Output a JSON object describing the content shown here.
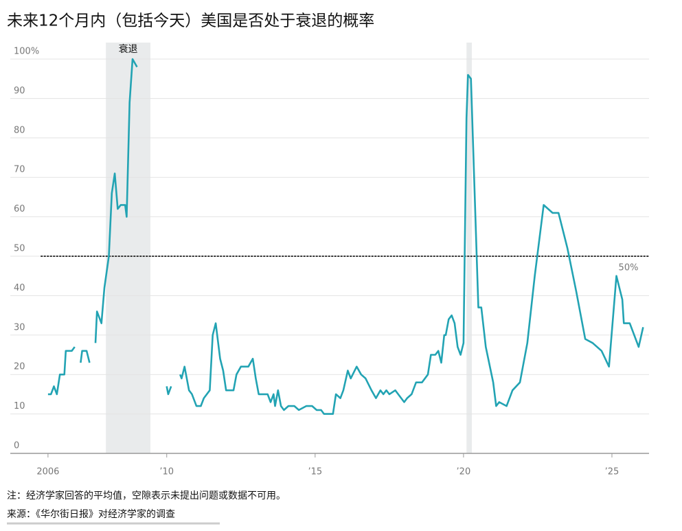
{
  "chart_data": {
    "type": "line",
    "title": "未来12个月内（包括今天）美国是否处于衰退的概率",
    "color": "#22a3b3",
    "grid": true,
    "xlim": [
      2004.73,
      2026.25
    ],
    "xticks": [
      2006,
      {
        "value": 2010,
        "label": "’10"
      },
      {
        "value": 2015,
        "label": "’15"
      },
      {
        "value": 2020,
        "label": "’20"
      },
      {
        "value": 2025,
        "label": "’25"
      }
    ],
    "ylim": [
      0,
      100
    ],
    "yticks": [
      0,
      10,
      20,
      30,
      40,
      50,
      60,
      70,
      80,
      90,
      {
        "value": 100,
        "label": "100%"
      }
    ],
    "shaded_ranges": [
      [
        2007.95,
        2009.45
      ],
      [
        2020.1,
        2020.28
      ]
    ],
    "shaded_label": "衰退",
    "reference_line": {
      "value": 50,
      "label": "50%"
    },
    "x": [
      2006.0,
      2006.1,
      2006.2,
      2006.3,
      2006.4,
      2006.55,
      2006.6,
      2006.8,
      2006.9,
      2007.0,
      2007.1,
      2007.15,
      2007.3,
      2007.4,
      2007.5,
      2007.6,
      2007.65,
      2007.8,
      2007.9,
      2008.05,
      2008.15,
      2008.25,
      2008.35,
      2008.45,
      2008.6,
      2008.65,
      2008.75,
      2008.85,
      2009.0,
      2009.5,
      2010.0,
      2010.05,
      2010.15,
      2010.3,
      2010.45,
      2010.5,
      2010.6,
      2010.75,
      2010.85,
      2011.0,
      2011.15,
      2011.25,
      2011.45,
      2011.55,
      2011.65,
      2011.8,
      2011.9,
      2012.0,
      2012.25,
      2012.35,
      2012.5,
      2012.75,
      2012.9,
      2013.0,
      2013.1,
      2013.4,
      2013.5,
      2013.6,
      2013.65,
      2013.75,
      2013.85,
      2013.95,
      2014.1,
      2014.3,
      2014.45,
      2014.7,
      2014.9,
      2015.05,
      2015.2,
      2015.3,
      2015.6,
      2015.7,
      2015.85,
      2015.95,
      2016.1,
      2016.2,
      2016.4,
      2016.55,
      2016.7,
      2016.9,
      2017.05,
      2017.2,
      2017.3,
      2017.4,
      2017.5,
      2017.7,
      2017.8,
      2018.0,
      2018.1,
      2018.25,
      2018.4,
      2018.6,
      2018.8,
      2018.9,
      2019.05,
      2019.15,
      2019.25,
      2019.35,
      2019.4,
      2019.5,
      2019.6,
      2019.7,
      2019.8,
      2019.9,
      2020.0,
      2020.1,
      2020.15,
      2020.25,
      2020.4,
      2020.5,
      2020.6,
      2020.75,
      2021.0,
      2021.1,
      2021.2,
      2021.45,
      2021.65,
      2021.9,
      2022.15,
      2022.4,
      2022.7,
      2023.0,
      2023.2,
      2023.5,
      2023.8,
      2024.1,
      2024.35,
      2024.65,
      2024.9,
      2025.15,
      2025.35,
      2025.4,
      2025.6,
      2025.9,
      2026.05
    ],
    "values": [
      15,
      15,
      17,
      15,
      20,
      20,
      26,
      26,
      27,
      null,
      23,
      26,
      26,
      23,
      null,
      28,
      36,
      33,
      42,
      50,
      66,
      71,
      62,
      63,
      63,
      60,
      89,
      100,
      98,
      null,
      17,
      15,
      17,
      null,
      20,
      19,
      22,
      16,
      15,
      12,
      12,
      14,
      16,
      30,
      33,
      24,
      21,
      16,
      16,
      20,
      22,
      22,
      24,
      19,
      15,
      15,
      13,
      15,
      12,
      16,
      12,
      11,
      12,
      12,
      11,
      12,
      12,
      11,
      11,
      10,
      10,
      15,
      14,
      16,
      21,
      19,
      22,
      20,
      19,
      16,
      14,
      16,
      15,
      16,
      15,
      16,
      15,
      13,
      14,
      15,
      18,
      18,
      20,
      25,
      25,
      26,
      23,
      30,
      30,
      34,
      35,
      33,
      27,
      25,
      28,
      85,
      96,
      95,
      60,
      37,
      37,
      27,
      18,
      12,
      13,
      12,
      16,
      18,
      28,
      45,
      63,
      61,
      61,
      52,
      41,
      29,
      28,
      26,
      22,
      45,
      39,
      33,
      33,
      27,
      32
    ],
    "notes": [
      "注：经济学家回答的平均值，空隙表示未提出问题或数据不可用。",
      "来源：《华尔街日报》对经济学家的调查"
    ]
  }
}
